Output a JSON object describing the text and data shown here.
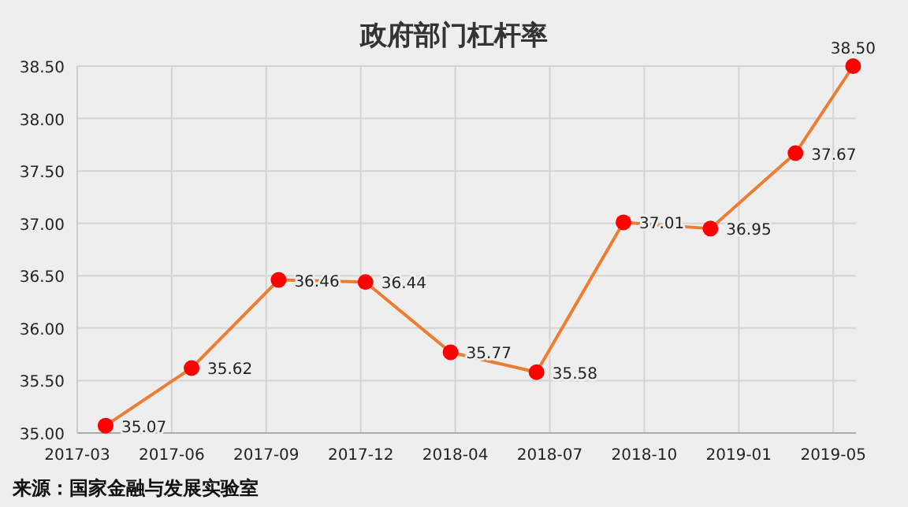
{
  "chart_data": {
    "type": "line",
    "title": "政府部门杠杆率",
    "x": [
      "2017-03-31",
      "2017-06-30",
      "2017-09-30",
      "2017-12-31",
      "2018-03-31",
      "2018-06-30",
      "2018-09-30",
      "2018-12-31",
      "2019-03-31",
      "2019-05-31"
    ],
    "series": [
      {
        "color": "#ed7d31",
        "colors": [
          "#ff0000",
          "#ff0000",
          "#ff0000",
          "#ff0000",
          "#ff0000",
          "#ff0000",
          "#ff0000",
          "#ff0000",
          "#ff0000",
          "#ff0000"
        ],
        "values": [
          35.07,
          35.62,
          36.46,
          36.44,
          35.77,
          35.58,
          37.01,
          36.95,
          37.67,
          38.5
        ],
        "value_labels": [
          "35.07",
          "35.62",
          "36.46",
          "36.44",
          "35.77",
          "35.58",
          "37.01",
          "36.95",
          "37.67",
          "38.50"
        ]
      }
    ],
    "xlim": [
      "2017-03-01",
      "2019-06-03"
    ],
    "xticks": [
      {
        "value": "2017-03-01",
        "label": "2017-03"
      },
      {
        "value": "2017-06-09",
        "label": "2017-06"
      },
      {
        "value": "2017-09-17",
        "label": "2017-09"
      },
      {
        "value": "2017-12-26",
        "label": "2017-12"
      },
      {
        "value": "2018-04-05",
        "label": "2018-04"
      },
      {
        "value": "2018-07-14",
        "label": "2018-07"
      },
      {
        "value": "2018-10-22",
        "label": "2018-10"
      },
      {
        "value": "2019-01-30",
        "label": "2019-01"
      },
      {
        "value": "2019-05-10",
        "label": "2019-05"
      }
    ],
    "ylim": [
      35,
      38.5
    ],
    "yticks": [
      {
        "value": 35,
        "label": "35.00"
      },
      {
        "value": 35.5,
        "label": "35.50"
      },
      {
        "value": 36,
        "label": "36.00"
      },
      {
        "value": 36.5,
        "label": "36.50"
      },
      {
        "value": 37,
        "label": "37.00"
      },
      {
        "value": 37.5,
        "label": "37.50"
      },
      {
        "value": 38,
        "label": "38.00"
      },
      {
        "value": 38.5,
        "label": "38.50"
      }
    ],
    "grid": true,
    "marker": "circle",
    "line_style": "solid",
    "annotations": [
      "来源：国家金融与发展实验室"
    ]
  }
}
